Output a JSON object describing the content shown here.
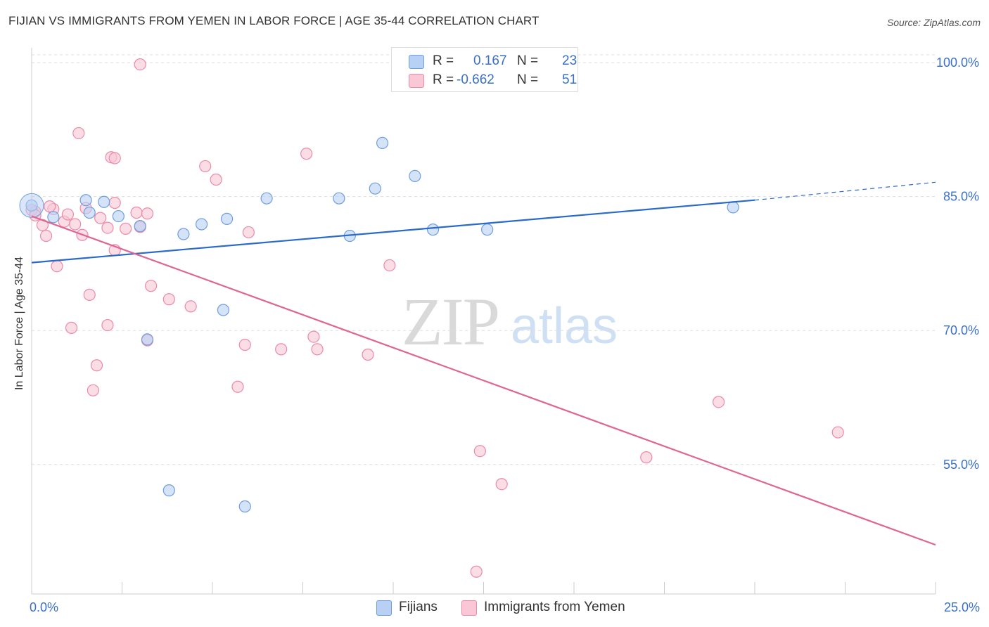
{
  "title": "FIJIAN VS IMMIGRANTS FROM YEMEN IN LABOR FORCE | AGE 35-44 CORRELATION CHART",
  "source": "Source: ZipAtlas.com",
  "watermark": {
    "zip": "ZIP",
    "atlas": "atlas"
  },
  "colors": {
    "fijians_fill": "#b8d0f4",
    "fijians_stroke": "#6f9ee0",
    "fijians_line": "#2a6ac8",
    "yemen_fill": "#f9c7d6",
    "yemen_stroke": "#ec8aa8",
    "yemen_line": "#e06591",
    "tick_label": "#3a70c8",
    "grid": "#dddddd"
  },
  "legend": {
    "rows": [
      {
        "r_label": "R =",
        "r_value": "0.167",
        "n_label": "N =",
        "n_value": "23"
      },
      {
        "r_label": "R =",
        "r_value": "-0.662",
        "n_label": "N =",
        "n_value": "51"
      }
    ]
  },
  "bottom_legend": [
    "Fijians",
    "Immigrants from Yemen"
  ],
  "chart_data": {
    "type": "scatter",
    "title": "FIJIAN VS IMMIGRANTS FROM YEMEN IN LABOR FORCE | AGE 35-44 CORRELATION CHART",
    "xlabel": "",
    "ylabel": "In Labor Force | Age 35-44",
    "xlim": [
      0,
      25
    ],
    "ylim": [
      40.5,
      101.5
    ],
    "x_tick_labels": [
      "0.0%",
      "25.0%"
    ],
    "y_ticks": [
      55,
      70,
      85,
      100
    ],
    "y_tick_labels": [
      "55.0%",
      "70.0%",
      "85.0%",
      "100.0%"
    ],
    "grid": true,
    "legend_position": "top-center",
    "series": [
      {
        "name": "Fijians",
        "points": [
          [
            0.0,
            84.0
          ],
          [
            0.6,
            82.7
          ],
          [
            1.6,
            83.2
          ],
          [
            2.0,
            84.4
          ],
          [
            2.4,
            82.8
          ],
          [
            3.0,
            81.7
          ],
          [
            4.2,
            80.8
          ],
          [
            4.7,
            81.9
          ],
          [
            5.4,
            82.5
          ],
          [
            6.5,
            84.8
          ],
          [
            8.5,
            84.8
          ],
          [
            8.8,
            80.6
          ],
          [
            9.5,
            85.9
          ],
          [
            9.7,
            91.0
          ],
          [
            10.6,
            87.3
          ],
          [
            11.1,
            81.3
          ],
          [
            12.6,
            81.3
          ],
          [
            19.4,
            83.8
          ],
          [
            5.3,
            72.3
          ],
          [
            3.2,
            69.0
          ],
          [
            3.8,
            52.1
          ],
          [
            5.9,
            50.3
          ],
          [
            1.5,
            84.6
          ]
        ]
      },
      {
        "name": "Immigrants from Yemen",
        "points": [
          [
            0.1,
            83.3
          ],
          [
            0.3,
            81.8
          ],
          [
            0.4,
            80.6
          ],
          [
            0.6,
            83.6
          ],
          [
            0.7,
            77.2
          ],
          [
            0.9,
            82.2
          ],
          [
            1.0,
            83.0
          ],
          [
            1.2,
            81.9
          ],
          [
            1.4,
            80.7
          ],
          [
            1.5,
            83.7
          ],
          [
            1.6,
            74.0
          ],
          [
            1.1,
            70.3
          ],
          [
            1.8,
            66.1
          ],
          [
            1.7,
            63.3
          ],
          [
            1.3,
            92.1
          ],
          [
            2.1,
            81.5
          ],
          [
            2.1,
            70.6
          ],
          [
            2.2,
            89.4
          ],
          [
            2.3,
            79.0
          ],
          [
            2.3,
            84.3
          ],
          [
            2.3,
            89.3
          ],
          [
            2.9,
            83.2
          ],
          [
            3.0,
            81.6
          ],
          [
            3.2,
            68.9
          ],
          [
            3.3,
            75.0
          ],
          [
            3.8,
            73.5
          ],
          [
            4.4,
            72.7
          ],
          [
            4.8,
            88.4
          ],
          [
            5.1,
            86.9
          ],
          [
            5.7,
            63.7
          ],
          [
            5.9,
            68.4
          ],
          [
            6.0,
            81.0
          ],
          [
            6.9,
            67.9
          ],
          [
            7.6,
            89.8
          ],
          [
            7.8,
            69.3
          ],
          [
            7.9,
            67.9
          ],
          [
            9.3,
            67.3
          ],
          [
            9.9,
            77.3
          ],
          [
            12.4,
            56.5
          ],
          [
            12.3,
            43.0
          ],
          [
            13.0,
            52.8
          ],
          [
            17.0,
            55.8
          ],
          [
            19.0,
            62.0
          ],
          [
            22.3,
            58.6
          ],
          [
            3.0,
            99.8
          ],
          [
            0.0,
            83.5
          ],
          [
            0.1,
            82.9
          ],
          [
            0.5,
            83.9
          ],
          [
            1.9,
            82.6
          ],
          [
            3.2,
            83.1
          ],
          [
            2.6,
            81.4
          ]
        ]
      }
    ],
    "trend_lines": [
      {
        "name": "Fijians",
        "x": [
          0,
          20
        ],
        "y": [
          77.6,
          84.6
        ],
        "dashed_extension_to": [
          25,
          86.6
        ]
      },
      {
        "name": "Immigrants from Yemen",
        "x": [
          0,
          25
        ],
        "y": [
          82.8,
          46.0
        ]
      }
    ]
  }
}
